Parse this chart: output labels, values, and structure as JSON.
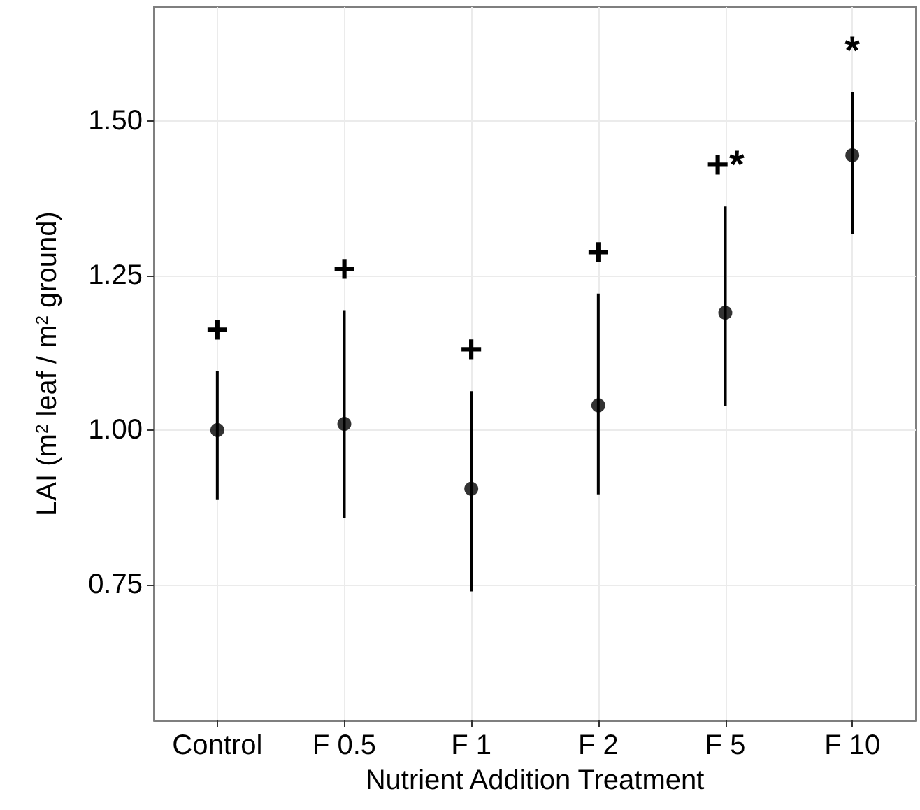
{
  "chart_data": {
    "type": "scatter",
    "xlabel": "Nutrient Addition Treatment",
    "ylabel": "LAI (m$^{2}$ leaf / m$^{2}$ ground)",
    "categories": [
      "Control",
      "F 0.5",
      "F 1",
      "F 2",
      "F 5",
      "F 10"
    ],
    "values": [
      1.0,
      1.01,
      0.905,
      1.04,
      1.19,
      1.445
    ],
    "errors": [
      [
        0.887,
        1.095
      ],
      [
        0.858,
        1.194
      ],
      [
        0.739,
        1.063
      ],
      [
        0.896,
        1.221
      ],
      [
        1.039,
        1.362
      ],
      [
        1.317,
        1.547
      ]
    ],
    "color": "#000000",
    "marker": "circle",
    "ylim": [
      0.53,
      1.685
    ],
    "yticks": [
      {
        "value": 0.75,
        "label": "0.75"
      },
      {
        "value": 1.0,
        "label": "1.00"
      },
      {
        "value": 1.25,
        "label": "1.25"
      },
      {
        "value": 1.5,
        "label": "1.50"
      }
    ],
    "grid": true,
    "annotations": [
      "+",
      "+",
      "+",
      "+",
      "+*",
      "*"
    ]
  }
}
